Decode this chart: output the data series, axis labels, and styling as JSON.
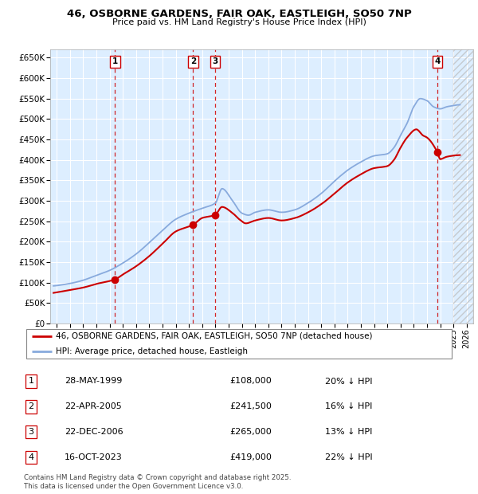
{
  "title": "46, OSBORNE GARDENS, FAIR OAK, EASTLEIGH, SO50 7NP",
  "subtitle": "Price paid vs. HM Land Registry's House Price Index (HPI)",
  "hpi_label": "HPI: Average price, detached house, Eastleigh",
  "property_label": "46, OSBORNE GARDENS, FAIR OAK, EASTLEIGH, SO50 7NP (detached house)",
  "footer": "Contains HM Land Registry data © Crown copyright and database right 2025.\nThis data is licensed under the Open Government Licence v3.0.",
  "red_color": "#cc0000",
  "blue_color": "#88aadd",
  "bg_color": "#ddeeff",
  "transactions": [
    {
      "num": 1,
      "date": "28-MAY-1999",
      "price": 108000,
      "pct": "20%",
      "x_year": 1999.41
    },
    {
      "num": 2,
      "date": "22-APR-2005",
      "price": 241500,
      "pct": "16%",
      "x_year": 2005.31
    },
    {
      "num": 3,
      "date": "22-DEC-2006",
      "price": 265000,
      "pct": "13%",
      "x_year": 2006.97
    },
    {
      "num": 4,
      "date": "16-OCT-2023",
      "price": 419000,
      "pct": "22%",
      "x_year": 2023.79
    }
  ],
  "ylim": [
    0,
    670000
  ],
  "xlim": [
    1994.5,
    2026.5
  ],
  "yticks": [
    0,
    50000,
    100000,
    150000,
    200000,
    250000,
    300000,
    350000,
    400000,
    450000,
    500000,
    550000,
    600000,
    650000
  ],
  "ytick_labels": [
    "£0",
    "£50K",
    "£100K",
    "£150K",
    "£200K",
    "£250K",
    "£300K",
    "£350K",
    "£400K",
    "£450K",
    "£500K",
    "£550K",
    "£600K",
    "£650K"
  ],
  "xticks": [
    1995,
    1996,
    1997,
    1998,
    1999,
    2000,
    2001,
    2002,
    2003,
    2004,
    2005,
    2006,
    2007,
    2008,
    2009,
    2010,
    2011,
    2012,
    2013,
    2014,
    2015,
    2016,
    2017,
    2018,
    2019,
    2020,
    2021,
    2022,
    2023,
    2024,
    2025,
    2026
  ]
}
